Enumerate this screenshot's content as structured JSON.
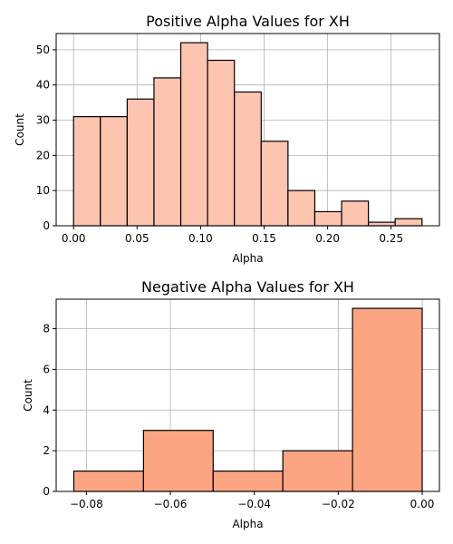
{
  "chart_data": [
    {
      "type": "bar",
      "title": "Positive Alpha Values for XH",
      "xlabel": "Alpha",
      "ylabel": "Count",
      "bin_edges": [
        0.0,
        0.0211,
        0.0422,
        0.0633,
        0.0844,
        0.1055,
        0.1266,
        0.1477,
        0.1688,
        0.1899,
        0.211,
        0.2321,
        0.2532,
        0.2743
      ],
      "values": [
        31,
        31,
        36,
        42,
        52,
        47,
        38,
        24,
        10,
        4,
        7,
        1,
        2
      ],
      "xlim": [
        -0.0137,
        0.288
      ],
      "ylim": [
        0,
        54.6
      ],
      "xticks": [
        0.0,
        0.05,
        0.1,
        0.15,
        0.2,
        0.25
      ],
      "xtick_labels": [
        "0.00",
        "0.05",
        "0.10",
        "0.15",
        "0.20",
        "0.25"
      ],
      "yticks": [
        0,
        10,
        20,
        30,
        40,
        50
      ],
      "ytick_labels": [
        "0",
        "10",
        "20",
        "30",
        "40",
        "50"
      ],
      "grid": true,
      "bar_color": "#fdc4b0",
      "edge_color": "#000000"
    },
    {
      "type": "bar",
      "title": "Negative Alpha Values for XH",
      "xlabel": "Alpha",
      "ylabel": "Count",
      "bin_edges": [
        -0.083,
        -0.0664,
        -0.0498,
        -0.0332,
        -0.0166,
        0.0
      ],
      "values": [
        1,
        3,
        1,
        2,
        9
      ],
      "xlim": [
        -0.0872,
        0.0041
      ],
      "ylim": [
        0,
        9.45
      ],
      "xticks": [
        -0.08,
        -0.06,
        -0.04,
        -0.02,
        0.0
      ],
      "xtick_labels": [
        "−0.08",
        "−0.06",
        "−0.04",
        "−0.02",
        "0.00"
      ],
      "yticks": [
        0,
        2,
        4,
        6,
        8
      ],
      "ytick_labels": [
        "0",
        "2",
        "4",
        "6",
        "8"
      ],
      "grid": true,
      "bar_color": "#fca582",
      "edge_color": "#000000"
    }
  ]
}
